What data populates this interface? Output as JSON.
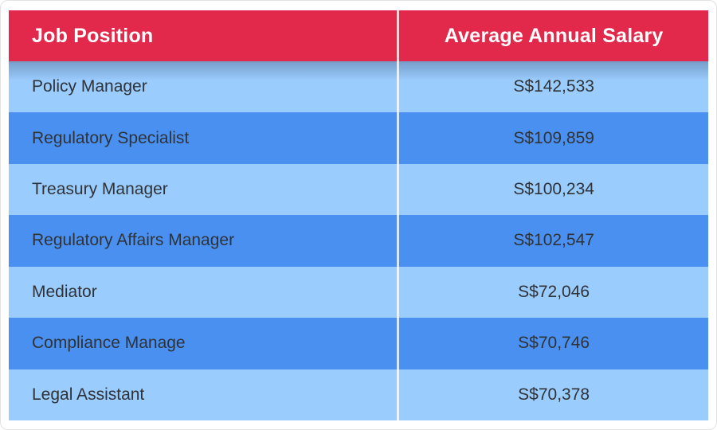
{
  "theme": {
    "header_bg": "#E2294B",
    "header_text": "#FFFFFF",
    "row_light": "#9ACCFD",
    "row_dark": "#4A90F0",
    "row_text": "#2F3338",
    "divider": "rgba(255,255,255,0.78)"
  },
  "table": {
    "columns": [
      {
        "label": "Job Position"
      },
      {
        "label": "Average Annual Salary"
      }
    ],
    "rows": [
      {
        "position": "Policy Manager",
        "salary": "S$142,533"
      },
      {
        "position": "Regulatory Specialist",
        "salary": "S$109,859"
      },
      {
        "position": "Treasury Manager",
        "salary": "S$100,234"
      },
      {
        "position": "Regulatory Affairs Manager",
        "salary": "S$102,547"
      },
      {
        "position": "Mediator",
        "salary": "S$72,046"
      },
      {
        "position": "Compliance Manage",
        "salary": "S$70,746"
      },
      {
        "position": "Legal Assistant",
        "salary": "S$70,378"
      }
    ]
  },
  "chart_data": {
    "type": "table",
    "columns": [
      "Job Position",
      "Average Annual Salary"
    ],
    "rows": [
      [
        "Policy Manager",
        "S$142,533"
      ],
      [
        "Regulatory Specialist",
        "S$109,859"
      ],
      [
        "Treasury Manager",
        "S$100,234"
      ],
      [
        "Regulatory Affairs Manager",
        "S$102,547"
      ],
      [
        "Mediator",
        "S$72,046"
      ],
      [
        "Compliance Manage",
        "S$70,746"
      ],
      [
        "Legal Assistant",
        "S$70,378"
      ]
    ],
    "salaries_numeric_sgd": [
      142533,
      109859,
      100234,
      102547,
      72046,
      70746,
      70378
    ],
    "currency_prefix": "S$"
  }
}
